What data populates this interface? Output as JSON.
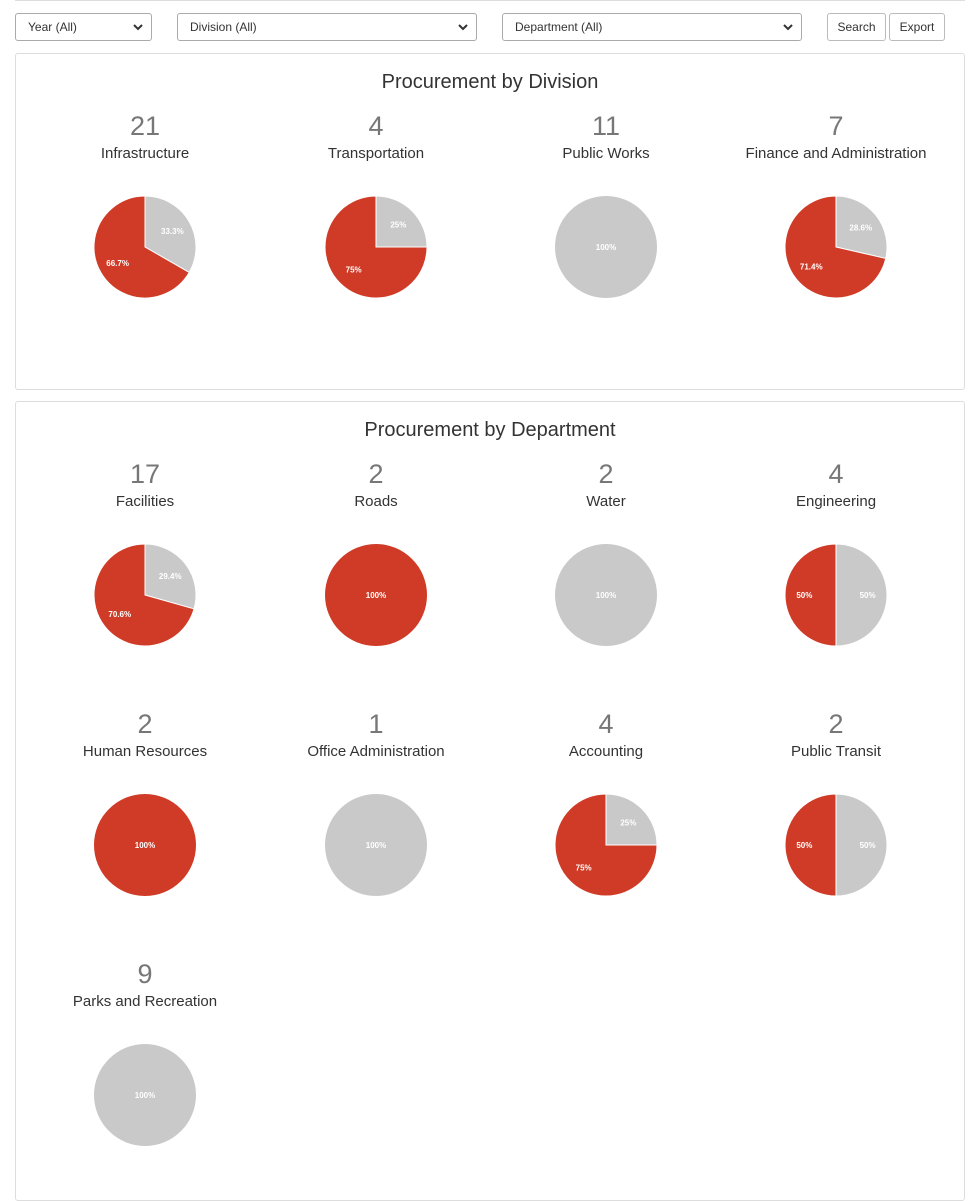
{
  "filters": {
    "year": "Year (All)",
    "division": "Division (All)",
    "department": "Department (All)",
    "search_label": "Search",
    "export_label": "Export"
  },
  "colors": {
    "red": "#cf3b26",
    "gray": "#c9c9c9",
    "divider": "#ffffff"
  },
  "chart_data": [
    {
      "type": "pie",
      "title": "Procurement by Division",
      "items": [
        {
          "label": "Infrastructure",
          "count": "21",
          "slices": [
            {
              "value": 33.3,
              "label": "33.3%",
              "color": "gray"
            },
            {
              "value": 66.7,
              "label": "66.7%",
              "color": "red"
            }
          ]
        },
        {
          "label": "Transportation",
          "count": "4",
          "slices": [
            {
              "value": 25,
              "label": "25%",
              "color": "gray"
            },
            {
              "value": 75,
              "label": "75%",
              "color": "red"
            }
          ]
        },
        {
          "label": "Public Works",
          "count": "11",
          "slices": [
            {
              "value": 100,
              "label": "100%",
              "color": "gray"
            }
          ]
        },
        {
          "label": "Finance and Administration",
          "count": "7",
          "slices": [
            {
              "value": 28.6,
              "label": "28.6%",
              "color": "gray"
            },
            {
              "value": 71.4,
              "label": "71.4%",
              "color": "red"
            }
          ]
        }
      ]
    },
    {
      "type": "pie",
      "title": "Procurement by Department",
      "items": [
        {
          "label": "Facilities",
          "count": "17",
          "slices": [
            {
              "value": 29.4,
              "label": "29.4%",
              "color": "gray"
            },
            {
              "value": 70.6,
              "label": "70.6%",
              "color": "red"
            }
          ]
        },
        {
          "label": "Roads",
          "count": "2",
          "slices": [
            {
              "value": 100,
              "label": "100%",
              "color": "red"
            }
          ]
        },
        {
          "label": "Water",
          "count": "2",
          "slices": [
            {
              "value": 100,
              "label": "100%",
              "color": "gray"
            }
          ]
        },
        {
          "label": "Engineering",
          "count": "4",
          "slices": [
            {
              "value": 50,
              "label": "50%",
              "color": "gray"
            },
            {
              "value": 50,
              "label": "50%",
              "color": "red"
            }
          ]
        },
        {
          "label": "Human Resources",
          "count": "2",
          "slices": [
            {
              "value": 100,
              "label": "100%",
              "color": "red"
            }
          ]
        },
        {
          "label": "Office Administration",
          "count": "1",
          "slices": [
            {
              "value": 100,
              "label": "100%",
              "color": "gray"
            }
          ]
        },
        {
          "label": "Accounting",
          "count": "4",
          "slices": [
            {
              "value": 25,
              "label": "25%",
              "color": "gray"
            },
            {
              "value": 75,
              "label": "75%",
              "color": "red"
            }
          ]
        },
        {
          "label": "Public Transit",
          "count": "2",
          "slices": [
            {
              "value": 50,
              "label": "50%",
              "color": "gray"
            },
            {
              "value": 50,
              "label": "50%",
              "color": "red"
            }
          ]
        },
        {
          "label": "Parks and Recreation",
          "count": "9",
          "slices": [
            {
              "value": 100,
              "label": "100%",
              "color": "gray"
            }
          ]
        }
      ]
    }
  ]
}
